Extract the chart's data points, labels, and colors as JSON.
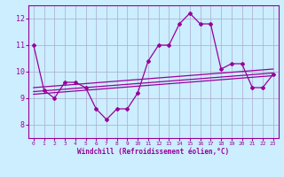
{
  "background_color": "#cceeff",
  "grid_color": "#aaaacc",
  "line_color": "#990099",
  "xlabel": "Windchill (Refroidissement éolien,°C)",
  "xlim": [
    -0.5,
    23.5
  ],
  "ylim": [
    7.5,
    12.5
  ],
  "yticks": [
    8,
    9,
    10,
    11,
    12
  ],
  "xticks": [
    0,
    1,
    2,
    3,
    4,
    5,
    6,
    7,
    8,
    9,
    10,
    11,
    12,
    13,
    14,
    15,
    16,
    17,
    18,
    19,
    20,
    21,
    22,
    23
  ],
  "line1_x": [
    0,
    1,
    2,
    3,
    4,
    5,
    6,
    7,
    8,
    9,
    10,
    11,
    12,
    13,
    14,
    15,
    16,
    17,
    18,
    19,
    20,
    21,
    22,
    23
  ],
  "line1_y": [
    11.0,
    9.3,
    9.0,
    9.6,
    9.6,
    9.4,
    8.6,
    8.2,
    8.6,
    8.6,
    9.2,
    10.4,
    11.0,
    11.0,
    11.8,
    12.2,
    11.8,
    11.8,
    10.1,
    10.3,
    10.3,
    9.4,
    9.4,
    9.9
  ],
  "line2_x": [
    0,
    23
  ],
  "line2_y": [
    9.15,
    9.85
  ],
  "line3_x": [
    0,
    23
  ],
  "line3_y": [
    9.25,
    9.95
  ],
  "line4_x": [
    0,
    23
  ],
  "line4_y": [
    9.4,
    10.1
  ]
}
